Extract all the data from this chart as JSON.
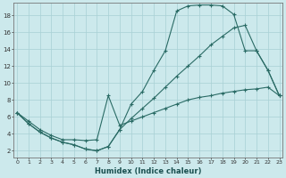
{
  "bg_color": "#cce9ec",
  "grid_color": "#a8d0d4",
  "line_color": "#2a6b65",
  "xlabel": "Humidex (Indice chaleur)",
  "xticks": [
    0,
    1,
    2,
    3,
    4,
    5,
    6,
    7,
    8,
    9,
    10,
    11,
    12,
    13,
    14,
    15,
    16,
    17,
    18,
    19,
    20,
    21,
    22,
    23
  ],
  "yticks": [
    2,
    4,
    6,
    8,
    10,
    12,
    14,
    16,
    18
  ],
  "xlim": [
    -0.3,
    23.3
  ],
  "ylim": [
    1.2,
    19.5
  ],
  "line1_x": [
    0,
    1,
    2,
    3,
    4,
    5,
    6,
    7,
    8,
    9,
    10,
    11,
    12,
    13,
    14,
    15,
    16,
    17,
    18,
    19,
    20,
    21,
    22,
    23
  ],
  "line1_y": [
    6.5,
    5.2,
    4.2,
    3.5,
    3.0,
    2.7,
    2.2,
    2.0,
    2.5,
    4.5,
    7.5,
    9.0,
    11.5,
    13.8,
    18.5,
    19.1,
    19.2,
    19.2,
    19.1,
    18.1,
    13.8,
    13.8,
    11.5,
    8.5
  ],
  "line2_x": [
    0,
    1,
    2,
    3,
    4,
    5,
    6,
    7,
    8,
    9,
    10,
    11,
    12,
    13,
    14,
    15,
    16,
    17,
    18,
    19,
    20,
    21,
    22,
    23
  ],
  "line2_y": [
    6.5,
    5.2,
    4.2,
    3.5,
    3.0,
    2.7,
    2.2,
    2.0,
    2.5,
    4.5,
    5.8,
    7.0,
    8.2,
    9.5,
    10.8,
    12.0,
    13.2,
    14.5,
    15.5,
    16.5,
    16.8,
    13.8,
    11.5,
    8.5
  ],
  "line3_x": [
    0,
    1,
    2,
    3,
    4,
    5,
    6,
    7,
    8,
    9,
    10,
    11,
    12,
    13,
    14,
    15,
    16,
    17,
    18,
    19,
    20,
    21,
    22,
    23
  ],
  "line3_y": [
    6.5,
    5.5,
    4.5,
    3.8,
    3.3,
    3.3,
    3.2,
    3.3,
    8.5,
    5.0,
    5.5,
    6.0,
    6.5,
    7.0,
    7.5,
    8.0,
    8.3,
    8.5,
    8.8,
    9.0,
    9.2,
    9.3,
    9.5,
    8.5
  ]
}
